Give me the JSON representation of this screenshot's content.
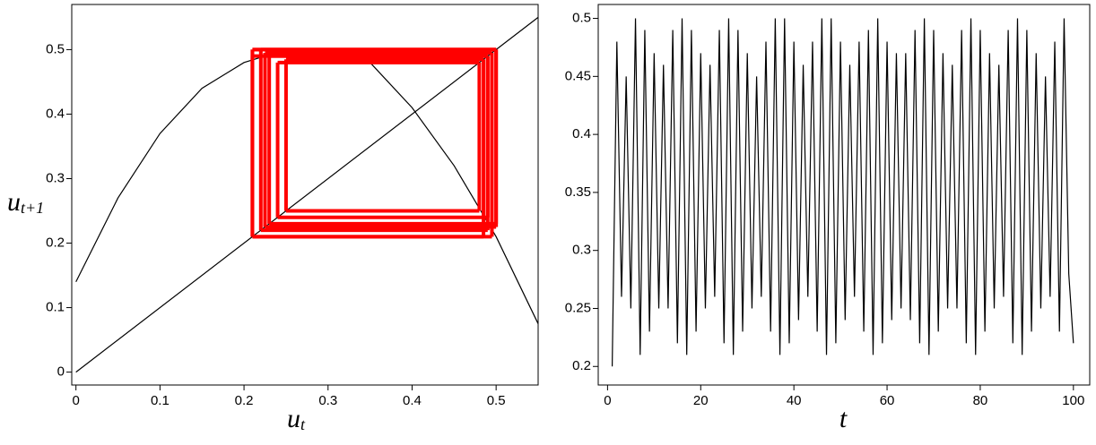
{
  "chart_data": [
    {
      "type": "cobweb",
      "xlabel": "u",
      "xlabel_subscript": "t",
      "ylabel": "u",
      "ylabel_subscript": "t+1",
      "xlim": [
        -0.005,
        0.55
      ],
      "ylim": [
        -0.02,
        0.57
      ],
      "xticks": [
        0,
        0.1,
        0.2,
        0.3,
        0.4,
        0.5
      ],
      "yticks": [
        0,
        0.1,
        0.2,
        0.3,
        0.4,
        0.5
      ],
      "series": [
        {
          "color": "#000000",
          "x": [
            0,
            0.05,
            0.1,
            0.15,
            0.2,
            0.25,
            0.3,
            0.35,
            0.4,
            0.45,
            0.5,
            0.55
          ],
          "values": [
            0.14,
            0.27,
            0.37,
            0.44,
            0.48,
            0.5,
            0.5,
            0.48,
            0.41,
            0.32,
            0.21,
            0.075
          ]
        },
        {
          "color": "#000000",
          "x": [
            0,
            0.55
          ],
          "values": [
            0,
            0.55
          ]
        }
      ],
      "orbit": {
        "color": "#ff0000",
        "values": [
          0.21,
          0.49,
          0.22,
          0.5,
          0.23,
          0.49,
          0.24,
          0.48,
          0.25,
          0.485,
          0.21,
          0.5,
          0.225,
          0.495,
          0.21,
          0.5
        ]
      }
    },
    {
      "type": "line",
      "xlabel": "t",
      "xlim": [
        -2,
        103.5
      ],
      "ylim": [
        0.184,
        0.512
      ],
      "xticks": [
        0,
        20,
        40,
        60,
        80,
        100
      ],
      "yticks": [
        0.2,
        0.25,
        0.3,
        0.35,
        0.4,
        0.45,
        0.5
      ],
      "series": [
        {
          "color": "#000000",
          "x": [
            1,
            2,
            3,
            4,
            5,
            6,
            7,
            8,
            9,
            10,
            11,
            12,
            13,
            14,
            15,
            16,
            17,
            18,
            19,
            20,
            21,
            22,
            23,
            24,
            25,
            26,
            27,
            28,
            29,
            30,
            31,
            32,
            33,
            34,
            35,
            36,
            37,
            38,
            39,
            40,
            41,
            42,
            43,
            44,
            45,
            46,
            47,
            48,
            49,
            50,
            51,
            52,
            53,
            54,
            55,
            56,
            57,
            58,
            59,
            60,
            61,
            62,
            63,
            64,
            65,
            66,
            67,
            68,
            69,
            70,
            71,
            72,
            73,
            74,
            75,
            76,
            77,
            78,
            79,
            80,
            81,
            82,
            83,
            84,
            85,
            86,
            87,
            88,
            89,
            90,
            91,
            92,
            93,
            94,
            95,
            96,
            97,
            98,
            99,
            100
          ],
          "values": [
            0.2,
            0.48,
            0.26,
            0.45,
            0.25,
            0.5,
            0.21,
            0.49,
            0.23,
            0.47,
            0.25,
            0.46,
            0.25,
            0.49,
            0.22,
            0.5,
            0.21,
            0.49,
            0.23,
            0.47,
            0.25,
            0.46,
            0.26,
            0.49,
            0.22,
            0.5,
            0.21,
            0.49,
            0.23,
            0.47,
            0.25,
            0.45,
            0.26,
            0.48,
            0.23,
            0.5,
            0.21,
            0.5,
            0.22,
            0.48,
            0.24,
            0.46,
            0.26,
            0.48,
            0.23,
            0.5,
            0.21,
            0.5,
            0.22,
            0.48,
            0.24,
            0.46,
            0.26,
            0.48,
            0.23,
            0.49,
            0.21,
            0.5,
            0.22,
            0.48,
            0.24,
            0.47,
            0.25,
            0.47,
            0.24,
            0.49,
            0.22,
            0.5,
            0.21,
            0.49,
            0.23,
            0.47,
            0.25,
            0.46,
            0.25,
            0.49,
            0.22,
            0.5,
            0.21,
            0.49,
            0.23,
            0.47,
            0.25,
            0.46,
            0.26,
            0.49,
            0.22,
            0.5,
            0.21,
            0.49,
            0.23,
            0.47,
            0.25,
            0.45,
            0.26,
            0.48,
            0.23,
            0.5,
            0.28,
            0.22
          ]
        }
      ]
    }
  ]
}
